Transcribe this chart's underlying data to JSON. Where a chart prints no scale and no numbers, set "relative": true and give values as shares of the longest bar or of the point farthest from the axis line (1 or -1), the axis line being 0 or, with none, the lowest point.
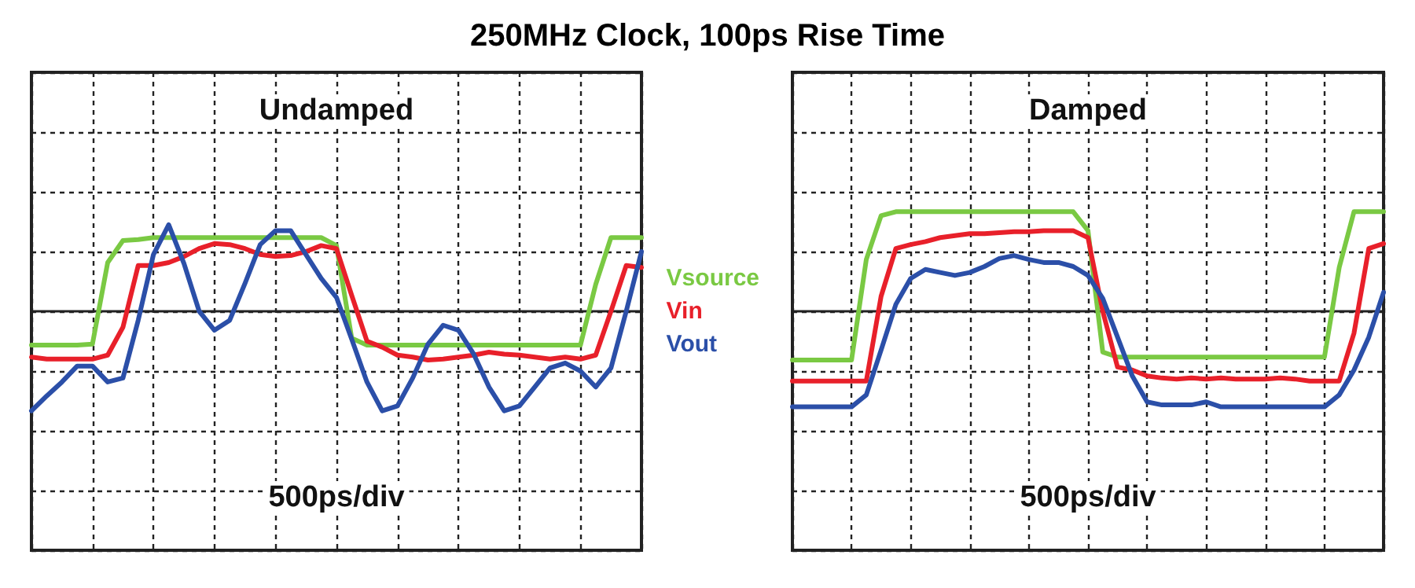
{
  "chart_data": [
    {
      "type": "line",
      "title": "250MHz Clock, 100ps Rise Time",
      "subtitle": "Undamped",
      "xlabel": "500ps/div",
      "relative": true,
      "grid": true,
      "legend": "right",
      "marker": "none",
      "line_style": "solid",
      "categories": [
        null,
        null,
        null,
        null,
        null,
        null,
        null,
        null,
        null,
        null,
        null,
        null,
        null,
        null,
        null,
        null,
        null,
        null,
        null,
        null,
        null,
        null,
        null,
        null,
        null,
        null,
        null,
        null,
        null,
        null,
        null,
        null,
        null,
        null,
        null,
        null,
        null,
        null,
        null,
        null,
        null
      ],
      "series": [
        {
          "name": "Vsource",
          "color": "#7ac943",
          "values": [
            -0.34,
            -0.34,
            -0.34,
            -0.34,
            -0.33,
            0.49,
            0.71,
            0.72,
            0.74,
            0.74,
            0.74,
            0.74,
            0.74,
            0.74,
            0.74,
            0.74,
            0.74,
            0.74,
            0.74,
            0.74,
            0.66,
            -0.27,
            -0.34,
            -0.34,
            -0.34,
            -0.34,
            -0.34,
            -0.34,
            -0.34,
            -0.34,
            -0.34,
            -0.34,
            -0.34,
            -0.34,
            -0.34,
            -0.34,
            -0.34,
            0.27,
            0.74,
            0.74,
            0.74
          ]
        },
        {
          "name": "Vin",
          "color": "#e8202a",
          "values": [
            -0.46,
            -0.48,
            -0.48,
            -0.48,
            -0.48,
            -0.44,
            -0.16,
            0.46,
            0.46,
            0.49,
            0.55,
            0.63,
            0.68,
            0.67,
            0.63,
            0.57,
            0.55,
            0.56,
            0.6,
            0.66,
            0.63,
            0.16,
            -0.3,
            -0.36,
            -0.44,
            -0.46,
            -0.49,
            -0.48,
            -0.46,
            -0.44,
            -0.41,
            -0.43,
            -0.44,
            -0.46,
            -0.48,
            -0.46,
            -0.48,
            -0.44,
            0,
            0.46,
            0.44
          ]
        },
        {
          "name": "Vout",
          "color": "#2b4fa8",
          "values": [
            -1,
            -0.85,
            -0.71,
            -0.55,
            -0.55,
            -0.71,
            -0.67,
            -0.09,
            0.57,
            0.87,
            0.48,
            0,
            -0.19,
            -0.09,
            0.28,
            0.67,
            0.81,
            0.81,
            0.57,
            0.33,
            0.14,
            -0.28,
            -0.71,
            -1,
            -0.95,
            -0.67,
            -0.33,
            -0.14,
            -0.19,
            -0.43,
            -0.76,
            -1,
            -0.95,
            -0.76,
            -0.57,
            -0.52,
            -0.6,
            -0.76,
            -0.57,
            0,
            0.6
          ]
        }
      ]
    },
    {
      "type": "line",
      "subtitle": "Damped",
      "xlabel": "500ps/div",
      "relative": true,
      "grid": true,
      "marker": "none",
      "line_style": "solid",
      "categories": [
        null,
        null,
        null,
        null,
        null,
        null,
        null,
        null,
        null,
        null,
        null,
        null,
        null,
        null,
        null,
        null,
        null,
        null,
        null,
        null,
        null,
        null,
        null,
        null,
        null,
        null,
        null,
        null,
        null,
        null,
        null,
        null,
        null,
        null,
        null,
        null,
        null,
        null,
        null,
        null,
        null
      ],
      "series": [
        {
          "color": "#7ac943",
          "values": [
            -0.49,
            -0.49,
            -0.49,
            -0.49,
            -0.49,
            0.52,
            0.96,
            1,
            1,
            1,
            1,
            1,
            1,
            1,
            1,
            1,
            1,
            1,
            1,
            1,
            0.81,
            -0.41,
            -0.46,
            -0.46,
            -0.46,
            -0.46,
            -0.46,
            -0.46,
            -0.46,
            -0.46,
            -0.46,
            -0.46,
            -0.46,
            -0.46,
            -0.46,
            -0.46,
            -0.46,
            0.44,
            1,
            1,
            1
          ]
        },
        {
          "color": "#e8202a",
          "values": [
            -0.7,
            -0.7,
            -0.7,
            -0.7,
            -0.7,
            -0.7,
            0.15,
            0.63,
            0.67,
            0.7,
            0.74,
            0.76,
            0.78,
            0.78,
            0.79,
            0.8,
            0.8,
            0.81,
            0.81,
            0.81,
            0.74,
            0,
            -0.56,
            -0.59,
            -0.65,
            -0.67,
            -0.68,
            -0.67,
            -0.68,
            -0.67,
            -0.68,
            -0.68,
            -0.68,
            -0.67,
            -0.68,
            -0.7,
            -0.7,
            -0.7,
            -0.22,
            0.63,
            0.68
          ]
        },
        {
          "color": "#2b4fa8",
          "values": [
            -0.96,
            -0.96,
            -0.96,
            -0.96,
            -0.96,
            -0.84,
            -0.39,
            0.07,
            0.33,
            0.42,
            0.39,
            0.36,
            0.39,
            0.45,
            0.53,
            0.56,
            0.52,
            0.49,
            0.49,
            0.45,
            0.36,
            0.13,
            -0.26,
            -0.65,
            -0.91,
            -0.94,
            -0.94,
            -0.94,
            -0.91,
            -0.96,
            -0.96,
            -0.96,
            -0.96,
            -0.96,
            -0.96,
            -0.96,
            -0.96,
            -0.84,
            -0.59,
            -0.26,
            0.19
          ]
        }
      ]
    }
  ]
}
